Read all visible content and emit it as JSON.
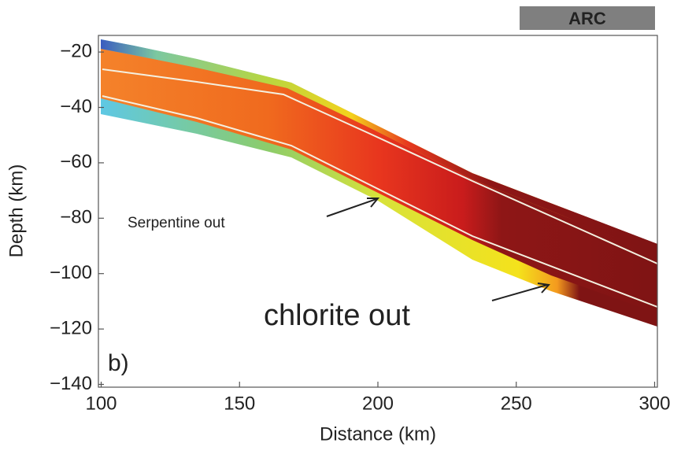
{
  "chart_data": {
    "type": "section",
    "xlabel": "Distance (km)",
    "ylabel": "Depth (km)",
    "xlim": [
      99,
      301
    ],
    "ylim": [
      -141,
      -14
    ],
    "xticks": [
      100,
      150,
      200,
      250,
      300
    ],
    "yticks": [
      {
        "value": -20,
        "label": "−20"
      },
      {
        "value": -40,
        "label": "−40"
      },
      {
        "value": -60,
        "label": "−60"
      },
      {
        "value": -80,
        "label": "−80"
      },
      {
        "value": -100,
        "label": "−100"
      },
      {
        "value": -120,
        "label": "−120"
      },
      {
        "value": -140,
        "label": "−140"
      }
    ],
    "panel_label": "b)",
    "annotations": [
      "ARC",
      "Serpentine out",
      "chlorite out"
    ]
  }
}
